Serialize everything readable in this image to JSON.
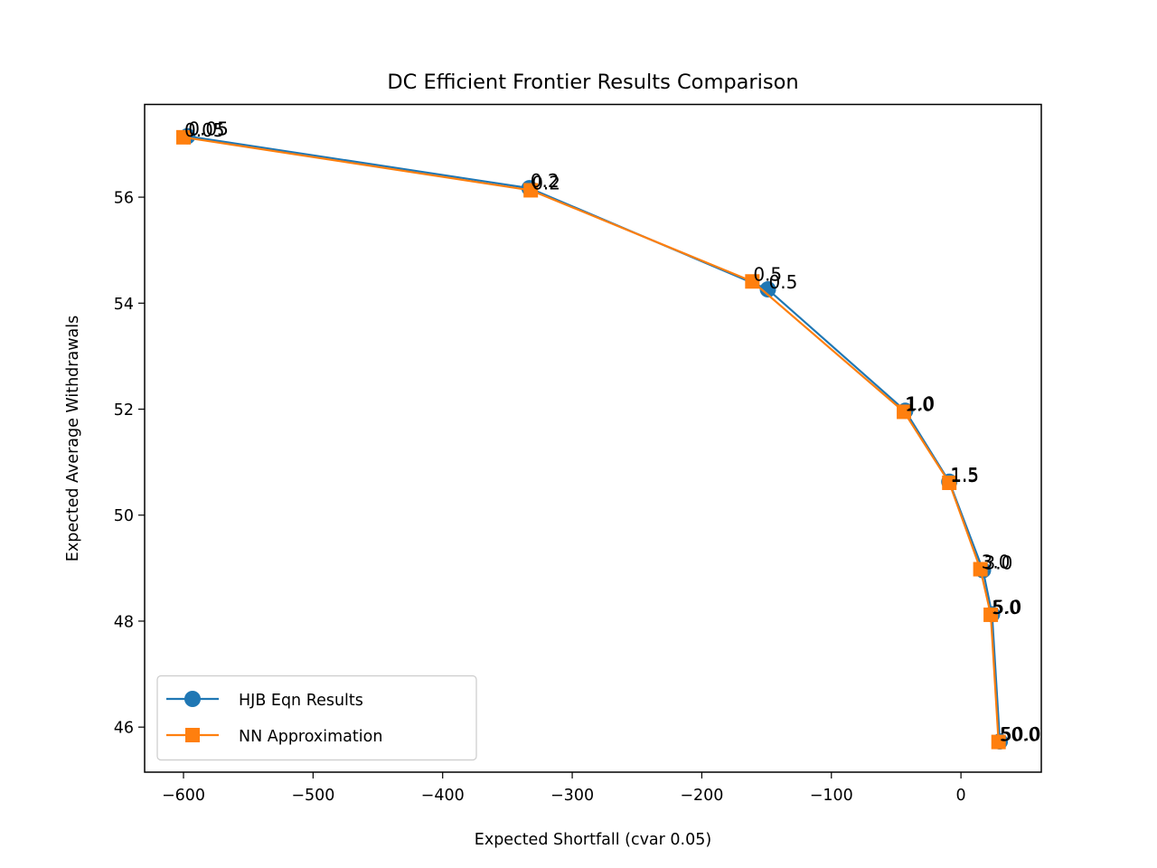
{
  "chart_data": {
    "type": "line",
    "title": "DC Efficient Frontier Results Comparison",
    "xlabel": "Expected Shortfall (cvar 0.05)",
    "ylabel": "Expected Average Withdrawals",
    "xlim": [
      -630,
      62
    ],
    "ylim": [
      45.15,
      57.75
    ],
    "xticks": [
      -600,
      -500,
      -400,
      -300,
      -200,
      -100,
      0
    ],
    "xtick_labels": [
      "−600",
      "−500",
      "−400",
      "−300",
      "−200",
      "−100",
      "0"
    ],
    "yticks": [
      46,
      48,
      50,
      52,
      54,
      56
    ],
    "ytick_labels": [
      "46",
      "48",
      "50",
      "52",
      "54",
      "56"
    ],
    "grid": false,
    "legend_position": "lower-left",
    "series": [
      {
        "name": "HJB Eqn Results",
        "color": "#1f77b4",
        "marker": "circle",
        "x": [
          -597,
          -333,
          -149,
          -43,
          -9,
          17,
          24,
          30
        ],
        "y": [
          57.15,
          56.17,
          54.26,
          51.97,
          50.63,
          48.96,
          48.13,
          45.73
        ],
        "labels": [
          "0.05",
          "0.2",
          "0.5",
          "1.0",
          "1.5",
          "3.0",
          "5.0",
          "50.0"
        ]
      },
      {
        "name": "NN Approximation",
        "color": "#ff7f0e",
        "marker": "square",
        "x": [
          -600,
          -332,
          -161,
          -44,
          -9,
          15,
          23,
          29
        ],
        "y": [
          57.13,
          56.13,
          54.41,
          51.95,
          50.61,
          48.98,
          48.12,
          45.72
        ],
        "labels": [
          "0.05",
          "0.2",
          "0.5",
          "1.0",
          "1.5",
          "3.0",
          "5.0",
          "50.0"
        ]
      }
    ]
  }
}
